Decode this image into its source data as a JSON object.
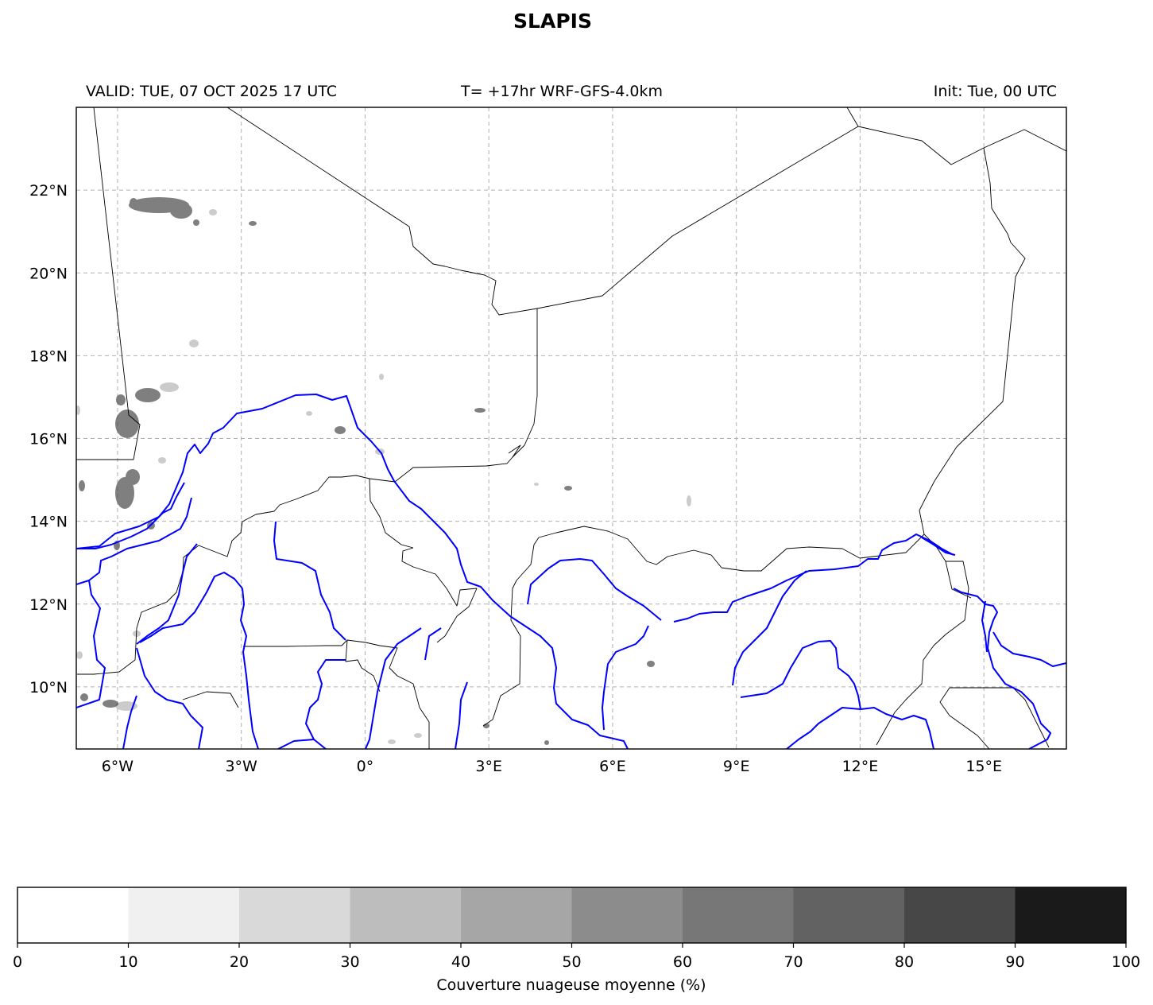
{
  "title": "SLAPIS",
  "subtitles": {
    "valid": "VALID: TUE, 07 OCT 2025 17 UTC",
    "run": "T= +17hr WRF-GFS-4.0km",
    "init": "Init: Tue, 00 UTC"
  },
  "map": {
    "extent": {
      "lon": [
        -7,
        17
      ],
      "lat": [
        8.5,
        24
      ]
    },
    "lon_ticks": [
      {
        "value": -6,
        "label": "6°W"
      },
      {
        "value": -3,
        "label": "3°W"
      },
      {
        "value": 0,
        "label": "0°"
      },
      {
        "value": 3,
        "label": "3°E"
      },
      {
        "value": 6,
        "label": "6°E"
      },
      {
        "value": 9,
        "label": "9°E"
      },
      {
        "value": 12,
        "label": "12°E"
      },
      {
        "value": 15,
        "label": "15°E"
      }
    ],
    "lat_ticks": [
      {
        "value": 10,
        "label": "10°N"
      },
      {
        "value": 12,
        "label": "12°N"
      },
      {
        "value": 14,
        "label": "14°N"
      },
      {
        "value": 16,
        "label": "16°N"
      },
      {
        "value": 18,
        "label": "18°N"
      },
      {
        "value": 20,
        "label": "20°N"
      },
      {
        "value": 22,
        "label": "22°N"
      }
    ],
    "gridlines": true,
    "colors": {
      "rivers": "#0000ff",
      "borders": "#000000",
      "grid": "#b0b0b0"
    }
  },
  "colorbar": {
    "label": "Couverture nuageuse moyenne (%)",
    "ticks": [
      "0",
      "10",
      "20",
      "30",
      "40",
      "50",
      "60",
      "70",
      "80",
      "90",
      "100"
    ],
    "colors": [
      "#ffffff",
      "#f0f0f0",
      "#d9d9d9",
      "#bdbdbd",
      "#a6a6a6",
      "#8c8c8c",
      "#777777",
      "#626262",
      "#474747",
      "#1a1a1a"
    ]
  }
}
